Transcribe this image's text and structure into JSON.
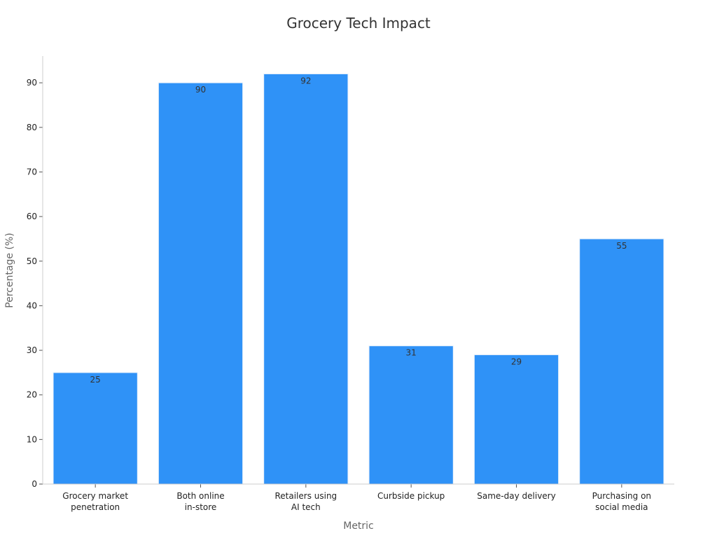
{
  "chart_data": {
    "type": "bar",
    "title": "Grocery Tech Impact",
    "xlabel": "Metric",
    "ylabel": "Percentage (%)",
    "categories": [
      [
        "Grocery market",
        "penetration"
      ],
      [
        "Both online",
        "in-store"
      ],
      [
        "Retailers using",
        "AI tech"
      ],
      [
        "Curbside pickup"
      ],
      [
        "Same-day delivery"
      ],
      [
        "Purchasing on",
        "social media"
      ]
    ],
    "values": [
      25,
      90,
      92,
      31,
      29,
      55
    ],
    "ylim": [
      0,
      96
    ],
    "yticks": [
      0,
      10,
      20,
      30,
      40,
      50,
      60,
      70,
      80,
      90
    ],
    "grid": false,
    "legend": "none",
    "colors": {
      "bar": "#2f92f7",
      "bar_edge": "#e8f1fb"
    }
  }
}
